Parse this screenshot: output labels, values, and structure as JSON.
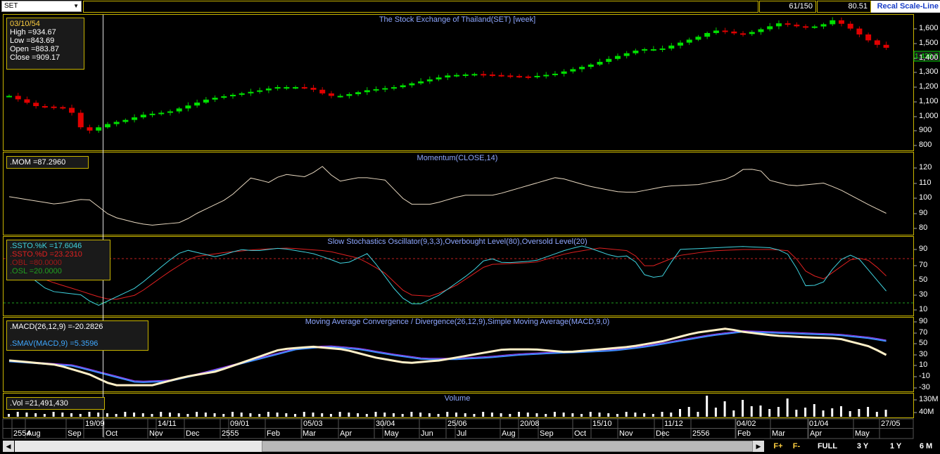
{
  "toolbar": {
    "symbol": "SET",
    "counter": "61/150",
    "value": "80.51",
    "scale_label": "Recal Scale-Line"
  },
  "price_panel": {
    "title": "The Stock Exchange of Thailand(SET) [week]",
    "info": {
      "date": "03/10/54",
      "high": "High  =934.67",
      "low": "Low  =843.69",
      "open": "Open  =883.87",
      "close": "Close  =909.17"
    },
    "y_ticks": [
      "1,600",
      "1,500",
      "1,400",
      "1,300",
      "1,200",
      "1,100",
      "1,000",
      "900",
      "800"
    ],
    "last_price": "1,439.7"
  },
  "momentum_panel": {
    "title": "Momentum(CLOSE,14)",
    "info": ".MOM  =87.2960",
    "y_ticks": [
      "120",
      "110",
      "100",
      "90",
      "80"
    ]
  },
  "stoch_panel": {
    "title": "Slow Stochastics Oscillator(9,3,3),Overbought Level(80),Oversold Level(20)",
    "k": ".SSTO.%K  =17.6046",
    "d": ".SSTO.%D  =23.2310",
    "obl": ".OBL  =80.0000",
    "osl": ".OSL  =20.0000",
    "y_ticks": [
      "90",
      "70",
      "50",
      "30",
      "10"
    ]
  },
  "macd_panel": {
    "title": "Moving Average Convergence / Divergence(26,12,9),Simple Moving Average(MACD,9,0)",
    "macd": ".MACD(26,12,9)  =-20.2826",
    "smav": ".SMAV(MACD,9)  =5.3596",
    "y_ticks": [
      "90",
      "70",
      "50",
      "30",
      "10",
      "-10",
      "-30"
    ]
  },
  "volume_panel": {
    "title": "Volume",
    "info": ".Vol  =21,491,430",
    "y_ticks": [
      "130M",
      "40M"
    ]
  },
  "x_axis": {
    "top_labels": [
      "19/09",
      "14/11",
      "09/01",
      "05/03",
      "30/04",
      "25/06",
      "20/08",
      "15/10",
      "11/12",
      "04/02",
      "01/04",
      "27/05"
    ],
    "bottom_labels": [
      "2554",
      "Aug",
      "Sep",
      "Oct",
      "Nov",
      "Dec",
      "2555",
      "Feb",
      "Mar",
      "Apr",
      "May",
      "Jun",
      "Jul",
      "Aug",
      "Sep",
      "Oct",
      "Nov",
      "Dec",
      "2556",
      "Feb",
      "Mar",
      "Apr",
      "May"
    ]
  },
  "bottom_buttons": {
    "f_plus": "F+",
    "f_minus": "F-",
    "full": "FULL",
    "three_y": "3 Y",
    "one_y": "1 Y",
    "six_m": "6 M"
  },
  "colors": {
    "up": "#00e000",
    "down": "#e00000",
    "k_line": "#3fd4e0",
    "d_line": "#e02020",
    "macd_line": "#fff0c8",
    "smav_line": "#3f8fff",
    "frame": "#c8b400",
    "title": "#8fa8ff"
  }
}
